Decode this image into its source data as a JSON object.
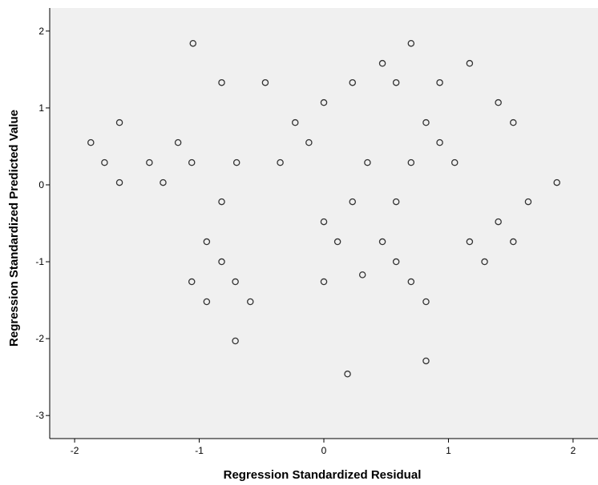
{
  "chart_data": {
    "type": "scatter",
    "title": "",
    "xlabel": "Regression Standardized Residual",
    "ylabel": "Regression Standardized Predicted Value",
    "xlim": [
      -2.2,
      2.2
    ],
    "ylim": [
      -3.3,
      2.3
    ],
    "xticks": [
      -2,
      -1,
      0,
      1,
      2
    ],
    "yticks": [
      -3,
      -2,
      -1,
      0,
      1,
      2
    ],
    "grid": false,
    "colors": {
      "plot_background": "#f0f0f0",
      "marker_stroke": "#333333",
      "axis": "#000000"
    },
    "points": [
      {
        "x": -1.05,
        "y": 1.84
      },
      {
        "x": 0.7,
        "y": 1.84
      },
      {
        "x": 0.47,
        "y": 1.58
      },
      {
        "x": 1.17,
        "y": 1.58
      },
      {
        "x": -0.82,
        "y": 1.33
      },
      {
        "x": -0.47,
        "y": 1.33
      },
      {
        "x": 0.23,
        "y": 1.33
      },
      {
        "x": 0.58,
        "y": 1.33
      },
      {
        "x": 0.93,
        "y": 1.33
      },
      {
        "x": 0.0,
        "y": 1.07
      },
      {
        "x": 1.4,
        "y": 1.07
      },
      {
        "x": -1.64,
        "y": 0.81
      },
      {
        "x": -0.23,
        "y": 0.81
      },
      {
        "x": 0.82,
        "y": 0.81
      },
      {
        "x": 1.52,
        "y": 0.81
      },
      {
        "x": -1.87,
        "y": 0.55
      },
      {
        "x": -1.17,
        "y": 0.55
      },
      {
        "x": -0.12,
        "y": 0.55
      },
      {
        "x": 0.93,
        "y": 0.55
      },
      {
        "x": -1.76,
        "y": 0.29
      },
      {
        "x": -1.4,
        "y": 0.29
      },
      {
        "x": -1.06,
        "y": 0.29
      },
      {
        "x": -0.7,
        "y": 0.29
      },
      {
        "x": -0.35,
        "y": 0.29
      },
      {
        "x": 0.35,
        "y": 0.29
      },
      {
        "x": 0.7,
        "y": 0.29
      },
      {
        "x": 1.05,
        "y": 0.29
      },
      {
        "x": -1.64,
        "y": 0.03
      },
      {
        "x": -1.29,
        "y": 0.03
      },
      {
        "x": 1.87,
        "y": 0.03
      },
      {
        "x": -0.82,
        "y": -0.22
      },
      {
        "x": 0.23,
        "y": -0.22
      },
      {
        "x": 0.58,
        "y": -0.22
      },
      {
        "x": 1.64,
        "y": -0.22
      },
      {
        "x": 0.0,
        "y": -0.48
      },
      {
        "x": 1.4,
        "y": -0.48
      },
      {
        "x": -0.94,
        "y": -0.74
      },
      {
        "x": 0.11,
        "y": -0.74
      },
      {
        "x": 0.47,
        "y": -0.74
      },
      {
        "x": 1.17,
        "y": -0.74
      },
      {
        "x": 1.52,
        "y": -0.74
      },
      {
        "x": -0.82,
        "y": -1.0
      },
      {
        "x": 0.58,
        "y": -1.0
      },
      {
        "x": 1.29,
        "y": -1.0
      },
      {
        "x": 0.31,
        "y": -1.17
      },
      {
        "x": -1.06,
        "y": -1.26
      },
      {
        "x": -0.71,
        "y": -1.26
      },
      {
        "x": 0.0,
        "y": -1.26
      },
      {
        "x": 0.7,
        "y": -1.26
      },
      {
        "x": -0.94,
        "y": -1.52
      },
      {
        "x": -0.59,
        "y": -1.52
      },
      {
        "x": 0.82,
        "y": -1.52
      },
      {
        "x": -0.71,
        "y": -2.03
      },
      {
        "x": 0.82,
        "y": -2.29
      },
      {
        "x": 0.19,
        "y": -2.46
      }
    ]
  }
}
